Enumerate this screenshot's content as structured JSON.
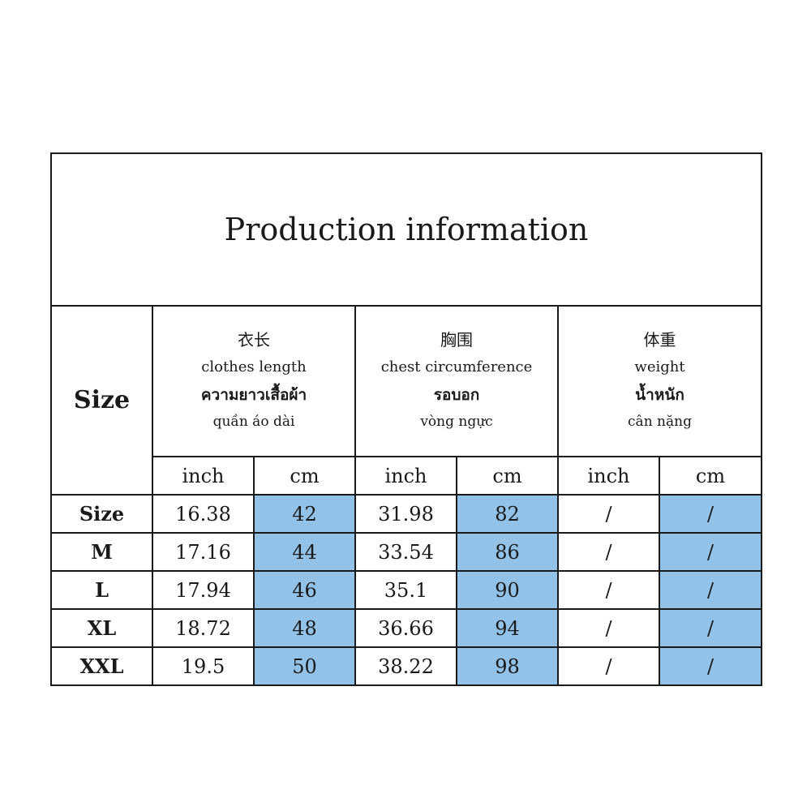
{
  "title": "Production information",
  "size_header": "Size",
  "columns": [
    {
      "cn": "衣长",
      "en": "clothes length",
      "th": "ความยาวเสื้อผ้า",
      "vi": "quần áo dài"
    },
    {
      "cn": "胸围",
      "en": "chest circumference",
      "th": "รอบอก",
      "vi": "vòng ngực"
    },
    {
      "cn": "体重",
      "en": "weight",
      "th": "น้ำหนัก",
      "vi": "cân nặng"
    }
  ],
  "units": [
    "inch",
    "cm",
    "inch",
    "cm",
    "inch",
    "cm"
  ],
  "highlight_color": "#92c2e8",
  "rows": [
    {
      "size": "Size",
      "values": [
        "16.38",
        "42",
        "31.98",
        "82",
        "/",
        "/"
      ]
    },
    {
      "size": "M",
      "values": [
        "17.16",
        "44",
        "33.54",
        "86",
        "/",
        "/"
      ]
    },
    {
      "size": "L",
      "values": [
        "17.94",
        "46",
        "35.1",
        "90",
        "/",
        "/"
      ]
    },
    {
      "size": "XL",
      "values": [
        "18.72",
        "48",
        "36.66",
        "94",
        "/",
        "/"
      ]
    },
    {
      "size": "XXL",
      "values": [
        "19.5",
        "50",
        "38.22",
        "98",
        "/",
        "/"
      ]
    }
  ]
}
